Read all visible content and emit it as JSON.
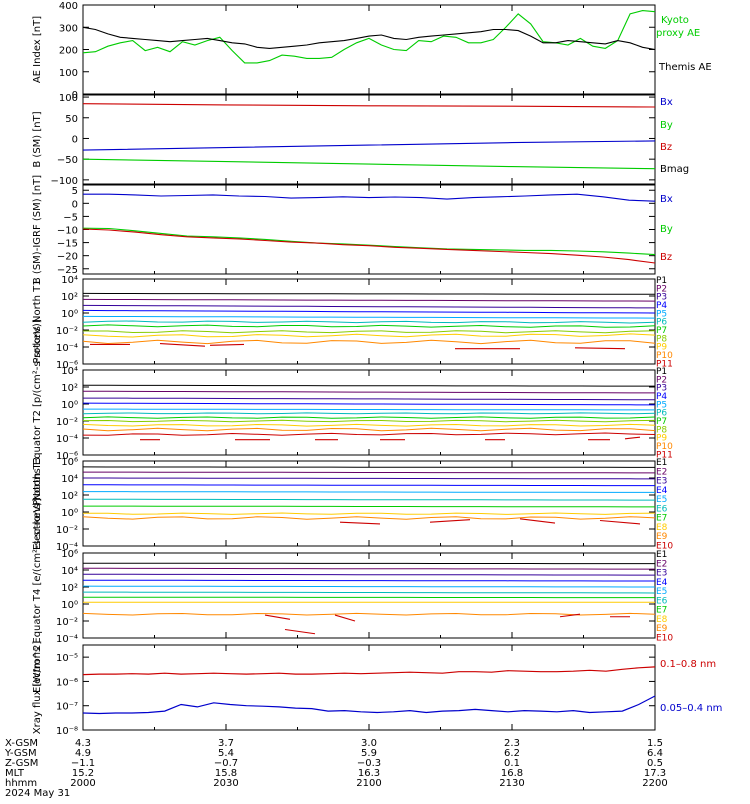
{
  "chart_data": [
    {
      "type": "line",
      "ylabel": "AE Index [nT]",
      "ylim": [
        0,
        400
      ],
      "yticks": [
        0,
        100,
        200,
        300,
        400
      ],
      "ytick_labels": [
        "0",
        "100",
        "200",
        "300",
        "400"
      ],
      "log": false,
      "series": [
        {
          "name": "Kyoto proxy AE",
          "color": "#00cc00",
          "values": [
            185,
            190,
            215,
            230,
            240,
            195,
            210,
            190,
            235,
            220,
            240,
            255,
            195,
            140,
            140,
            150,
            175,
            170,
            160,
            160,
            165,
            200,
            230,
            250,
            220,
            200,
            195,
            240,
            235,
            260,
            255,
            230,
            230,
            245,
            300,
            360,
            315,
            235,
            230,
            220,
            250,
            215,
            205,
            240,
            360,
            375,
            370
          ]
        },
        {
          "name": "Themis AE",
          "color": "#000000",
          "values": [
            300,
            290,
            270,
            255,
            250,
            245,
            240,
            235,
            240,
            245,
            250,
            240,
            230,
            225,
            210,
            205,
            210,
            215,
            220,
            230,
            235,
            240,
            250,
            260,
            265,
            250,
            245,
            255,
            260,
            265,
            270,
            275,
            280,
            290,
            290,
            285,
            260,
            230,
            230,
            240,
            235,
            230,
            225,
            240,
            230,
            210,
            200
          ]
        }
      ]
    },
    {
      "type": "line",
      "ylabel": "B (SM) [nT]",
      "ylim": [
        -110,
        105
      ],
      "yticks": [
        100,
        50,
        0,
        -50,
        -100
      ],
      "ytick_labels": [
        "100",
        "50",
        "0",
        "−50",
        "−100"
      ],
      "log": false,
      "series": [
        {
          "name": "Bx",
          "color": "#0000cc",
          "values": [
            -28,
            -22,
            -16,
            -10,
            -6
          ]
        },
        {
          "name": "By",
          "color": "#00cc00",
          "values": [
            -50,
            -56,
            -62,
            -68,
            -73
          ]
        },
        {
          "name": "Bz",
          "color": "#cc0000",
          "values": [
            84,
            81,
            79,
            78,
            76
          ]
        },
        {
          "name": "Bmag",
          "color": "#000000",
          "values": [
            null,
            null,
            null,
            null,
            null
          ]
        }
      ]
    },
    {
      "type": "line",
      "ylabel": "B (SM)-IGRF (SM) [nT]",
      "ylim": [
        -27,
        7
      ],
      "yticks": [
        5,
        0,
        -5,
        -10,
        -15,
        -20,
        -25
      ],
      "ytick_labels": [
        "5",
        "0",
        "−5",
        "−10",
        "−15",
        "−20",
        "−25"
      ],
      "log": false,
      "series": [
        {
          "name": "Bx",
          "color": "#0000cc",
          "values": [
            3.5,
            3.5,
            3.2,
            2.8,
            3,
            3.2,
            2.8,
            2.6,
            2,
            2.2,
            2.5,
            2.2,
            2.4,
            2.2,
            1.6,
            2.2,
            2.5,
            2.8,
            3.2,
            3.5,
            2.5,
            1.2,
            0.8
          ]
        },
        {
          "name": "By",
          "color": "#00cc00",
          "values": [
            -9.5,
            -9.6,
            -10.5,
            -11.5,
            -12.5,
            -12.8,
            -13.2,
            -13.8,
            -14.5,
            -15.2,
            -15.5,
            -16,
            -16.5,
            -17,
            -17.4,
            -17.6,
            -17.8,
            -18,
            -18,
            -18.2,
            -18.5,
            -19,
            -19.6
          ]
        },
        {
          "name": "Bz",
          "color": "#cc0000",
          "values": [
            -9.8,
            -10.2,
            -11,
            -12,
            -12.8,
            -13.2,
            -13.6,
            -14.2,
            -14.8,
            -15.2,
            -15.8,
            -16.2,
            -16.8,
            -17.2,
            -17.6,
            -18,
            -18.4,
            -18.8,
            -19.2,
            -19.8,
            -20.5,
            -21.5,
            -22.8
          ]
        }
      ]
    },
    {
      "type": "line",
      "ylabel": "Protons North T1",
      "ylim": [
        -6,
        4
      ],
      "yticks": [
        4,
        2,
        0,
        -2,
        -4,
        -6
      ],
      "ytick_labels": [
        "10⁴",
        "10²",
        "10⁰",
        "10⁻²",
        "10⁻⁴",
        "10⁻⁶"
      ],
      "log": true,
      "legend": [
        "P1",
        "P2",
        "P3",
        "P4",
        "P5",
        "P6",
        "P7",
        "P8",
        "P9",
        "P10",
        "P11"
      ],
      "legend_colors": [
        "#000000",
        "#660066",
        "#330099",
        "#0000ff",
        "#00aaff",
        "#00bbbb",
        "#00cc00",
        "#88cc00",
        "#ffcc00",
        "#ff8800",
        "#cc0000"
      ]
    },
    {
      "type": "line",
      "ylabel": "Protons Equator T2 [p/(cm²-s-sr-keV)]",
      "ylim": [
        -6,
        4
      ],
      "yticks": [
        4,
        2,
        0,
        -2,
        -4,
        -6
      ],
      "ytick_labels": [
        "10⁴",
        "10²",
        "10⁰",
        "10⁻²",
        "10⁻⁴",
        "10⁻⁶"
      ],
      "log": true,
      "legend": [
        "P1",
        "P2",
        "P3",
        "P4",
        "P5",
        "P6",
        "P7",
        "P8",
        "P9",
        "P10",
        "P11"
      ],
      "legend_colors": [
        "#000000",
        "#660066",
        "#330099",
        "#0000ff",
        "#00aaff",
        "#00bbbb",
        "#00cc00",
        "#88cc00",
        "#ffcc00",
        "#ff8800",
        "#cc0000"
      ]
    },
    {
      "type": "line",
      "ylabel": "Electrons North T3",
      "ylim": [
        -4,
        6
      ],
      "yticks": [
        6,
        4,
        2,
        0,
        -2,
        -4
      ],
      "ytick_labels": [
        "10⁶",
        "10⁴",
        "10²",
        "10⁰",
        "10⁻²",
        "10⁻⁴"
      ],
      "log": true,
      "legend": [
        "E1",
        "E2",
        "E3",
        "E4",
        "E5",
        "E6",
        "E7",
        "E8",
        "E9",
        "E10"
      ],
      "legend_colors": [
        "#000000",
        "#660066",
        "#330099",
        "#0000ff",
        "#00aaff",
        "#00bbbb",
        "#00cc00",
        "#ffcc00",
        "#ff8800",
        "#cc0000"
      ]
    },
    {
      "type": "line",
      "ylabel": "Electrons Equator T4 [e/(cm²-s-sr-keV)]",
      "ylim": [
        -4,
        6
      ],
      "yticks": [
        6,
        4,
        2,
        0,
        -2,
        -4
      ],
      "ytick_labels": [
        "10⁶",
        "10⁴",
        "10²",
        "10⁰",
        "10⁻²",
        "10⁻⁴"
      ],
      "log": true,
      "legend": [
        "E1",
        "E2",
        "E3",
        "E4",
        "E5",
        "E6",
        "E7",
        "E8",
        "E9",
        "E10"
      ],
      "legend_colors": [
        "#000000",
        "#660066",
        "#330099",
        "#0000ff",
        "#00aaff",
        "#00bbbb",
        "#00cc00",
        "#ffcc00",
        "#ff8800",
        "#cc0000"
      ]
    },
    {
      "type": "line",
      "ylabel": "Xray flux [W/m^2]",
      "ylim": [
        -8,
        -4.5
      ],
      "yticks": [
        -5,
        -6,
        -7,
        -8
      ],
      "ytick_labels": [
        "10⁻⁵",
        "10⁻⁶",
        "10⁻⁷",
        "10⁻⁸"
      ],
      "log": true,
      "series": [
        {
          "name": "0.1–0.8 nm",
          "color": "#cc0000",
          "values": [
            -5.72,
            -5.7,
            -5.7,
            -5.68,
            -5.7,
            -5.66,
            -5.7,
            -5.68,
            -5.66,
            -5.68,
            -5.7,
            -5.68,
            -5.66,
            -5.7,
            -5.7,
            -5.68,
            -5.66,
            -5.68,
            -5.66,
            -5.64,
            -5.62,
            -5.64,
            -5.66,
            -5.6,
            -5.6,
            -5.62,
            -5.56,
            -5.58,
            -5.6,
            -5.6,
            -5.58,
            -5.54,
            -5.58,
            -5.5,
            -5.44,
            -5.4
          ]
        },
        {
          "name": "0.05–0.4 nm",
          "color": "#0000cc",
          "values": [
            -7.3,
            -7.32,
            -7.3,
            -7.3,
            -7.28,
            -7.22,
            -6.95,
            -7.05,
            -6.88,
            -6.95,
            -7.0,
            -7.02,
            -7.05,
            -7.1,
            -7.12,
            -7.22,
            -7.2,
            -7.25,
            -7.28,
            -7.25,
            -7.2,
            -7.28,
            -7.22,
            -7.2,
            -7.15,
            -7.2,
            -7.25,
            -7.2,
            -7.22,
            -7.25,
            -7.2,
            -7.28,
            -7.25,
            -7.22,
            -6.95,
            -6.6
          ]
        }
      ]
    }
  ],
  "orbit_rows": [
    {
      "label": "X-GSM",
      "values": [
        "4.3",
        "3.7",
        "3.0",
        "2.3",
        "1.5"
      ]
    },
    {
      "label": "Y-GSM",
      "values": [
        "4.9",
        "5.4",
        "5.9",
        "6.2",
        "6.4"
      ]
    },
    {
      "label": "Z-GSM",
      "values": [
        "−1.1",
        "−0.7",
        "−0.3",
        "0.1",
        "0.5"
      ]
    },
    {
      "label": "MLT",
      "values": [
        "15.2",
        "15.8",
        "16.3",
        "16.8",
        "17.3"
      ]
    },
    {
      "label": "hhmm",
      "values": [
        "2000",
        "2030",
        "2100",
        "2130",
        "2200"
      ]
    }
  ],
  "date_label": "2024 May 31",
  "labels": {
    "kyoto_line1": "Kyoto",
    "kyoto_line2": "proxy AE",
    "themis": "Themis AE"
  }
}
